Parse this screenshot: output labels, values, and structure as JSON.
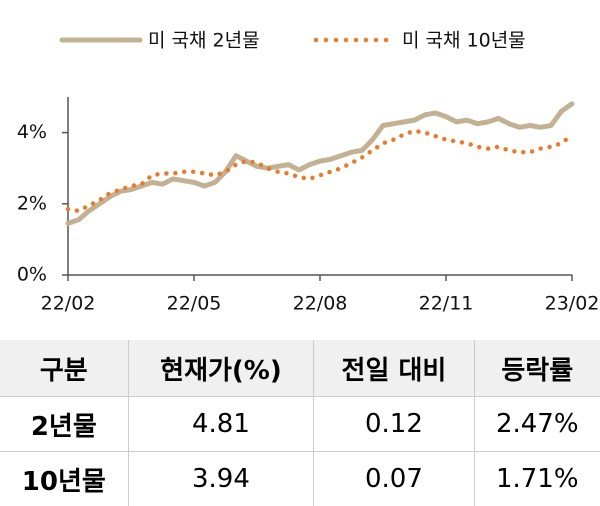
{
  "chart_data": {
    "type": "line",
    "categories": [
      "22/02",
      null,
      null,
      null,
      null,
      null,
      null,
      null,
      null,
      null,
      null,
      null,
      "22/05",
      null,
      null,
      null,
      null,
      null,
      null,
      null,
      null,
      null,
      null,
      null,
      "22/08",
      null,
      null,
      null,
      null,
      null,
      null,
      null,
      null,
      null,
      null,
      null,
      "22/11",
      null,
      null,
      null,
      null,
      null,
      null,
      null,
      null,
      null,
      null,
      null,
      "23/02"
    ],
    "series": [
      {
        "name": "미 국채 2년물",
        "color": "#c3b193",
        "style": "solid",
        "values": [
          1.45,
          1.55,
          1.8,
          2.0,
          2.2,
          2.35,
          2.4,
          2.5,
          2.6,
          2.55,
          2.7,
          2.65,
          2.6,
          2.5,
          2.6,
          2.9,
          3.35,
          3.2,
          3.05,
          3.0,
          3.05,
          3.1,
          2.95,
          3.1,
          3.2,
          3.25,
          3.35,
          3.45,
          3.5,
          3.8,
          4.2,
          4.25,
          4.3,
          4.35,
          4.5,
          4.55,
          4.45,
          4.3,
          4.35,
          4.25,
          4.3,
          4.4,
          4.25,
          4.15,
          4.2,
          4.15,
          4.2,
          4.6,
          4.81
        ]
      },
      {
        "name": "미 국채 10년물",
        "color": "#ea7a2c",
        "style": "dotted",
        "values": [
          1.85,
          1.8,
          1.95,
          2.1,
          2.3,
          2.4,
          2.5,
          2.55,
          2.8,
          2.85,
          2.85,
          2.9,
          2.9,
          2.85,
          2.8,
          2.9,
          3.1,
          3.2,
          3.15,
          3.0,
          2.9,
          2.85,
          2.75,
          2.7,
          2.8,
          2.9,
          3.0,
          3.15,
          3.3,
          3.5,
          3.7,
          3.8,
          3.95,
          4.05,
          4.0,
          3.9,
          3.8,
          3.75,
          3.7,
          3.6,
          3.55,
          3.6,
          3.5,
          3.45,
          3.45,
          3.55,
          3.6,
          3.7,
          3.94
        ]
      }
    ],
    "ylim": [
      0,
      5
    ],
    "yticks": [
      {
        "value": 0,
        "label": "0%"
      },
      {
        "value": 2,
        "label": "2%"
      },
      {
        "value": 4,
        "label": "4%"
      }
    ],
    "legend": "top"
  },
  "table": {
    "header": [
      "구분",
      "현재가(%)",
      "전일 대비",
      "등락률"
    ],
    "rows": [
      [
        "2년물",
        "4.81",
        "0.12",
        "2.47%"
      ],
      [
        "10년물",
        "3.94",
        "0.07",
        "1.71%"
      ]
    ]
  }
}
